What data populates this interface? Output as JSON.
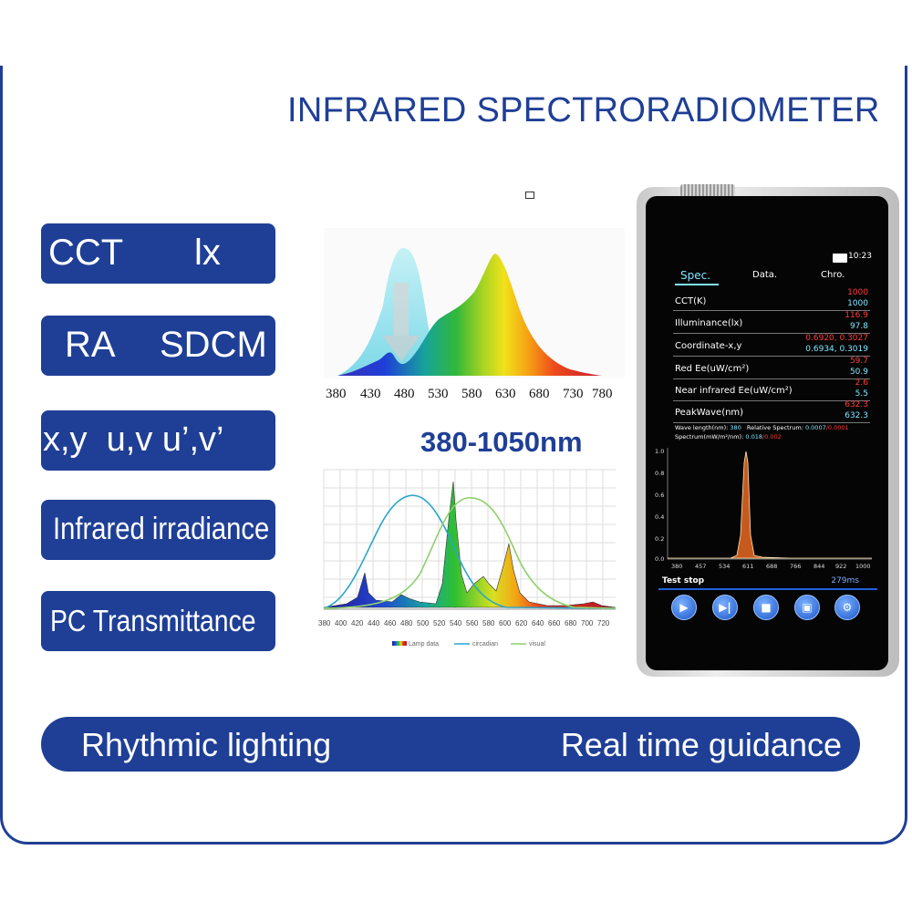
{
  "title": "INFRARED SPECTRORADIOMETER",
  "pills": {
    "p1_left": "CCT",
    "p1_right": "lx",
    "p2_left": "RA",
    "p2_right": "SDCM",
    "p3": "x,y  u,v u’,v’",
    "p4": "Infrared irradiance",
    "p5": "PC Transmittance"
  },
  "spectrum_ticks": [
    "380",
    "430",
    "480",
    "530",
    "580",
    "630",
    "680",
    "730",
    "780"
  ],
  "range_text": "380-1050nm",
  "chart2": {
    "x_ticks": [
      "380",
      "400",
      "420",
      "440",
      "460",
      "480",
      "500",
      "520",
      "540",
      "560",
      "580",
      "600",
      "620",
      "640",
      "660",
      "680",
      "700",
      "720"
    ],
    "legend": [
      "Lamp data",
      "circadian",
      "visual"
    ],
    "colors": {
      "circadian": "#2aa6c9",
      "visual": "#8fd06a"
    }
  },
  "device": {
    "time": "10:23",
    "tabs": [
      "Spec.",
      "Data.",
      "Chro."
    ],
    "rows": [
      {
        "label": "CCT(K)",
        "v1": "1000",
        "v2": "1000"
      },
      {
        "label": "Illuminance(lx)",
        "v1": "116.9",
        "v2": "97.8"
      },
      {
        "label": "Coordinate-x,y",
        "v1": "0.6920, 0.3027",
        "v2": "0.6934, 0.3019"
      },
      {
        "label": "Red Ee(uW/cm²)",
        "v1": "59.7",
        "v2": "50.9"
      },
      {
        "label": "Near infrared Ee(uW/cm²)",
        "v1": "2.6",
        "v2": "5.5"
      },
      {
        "label": "PeakWave(nm)",
        "v1": "632.3",
        "v2": "632.3"
      }
    ],
    "info_line1_label": "Wave length(nm):",
    "info_line1_value": "380",
    "info_line1_label2": "Relative Spectrum:",
    "info_line1_value2": "0.0007",
    "info_line1_value3": "/0.0001",
    "info_line2_label": "Spectrum(mW/m²/nm):",
    "info_line2_value": "0.018",
    "info_line2_value2": "/0.002",
    "y_ticks": [
      "1.0",
      "0.8",
      "0.6",
      "0.4",
      "0.2",
      "0.0"
    ],
    "x_ticks": [
      "380",
      "457",
      "534",
      "611",
      "688",
      "766",
      "844",
      "922",
      "1000"
    ],
    "status": "Test stop",
    "duration": "279ms",
    "button_icons": [
      "play-icon",
      "step-icon",
      "stop-icon",
      "save-icon",
      "settings-icon"
    ]
  },
  "bottom": {
    "left": "Rhythmic lighting",
    "right": "Real time guidance"
  }
}
